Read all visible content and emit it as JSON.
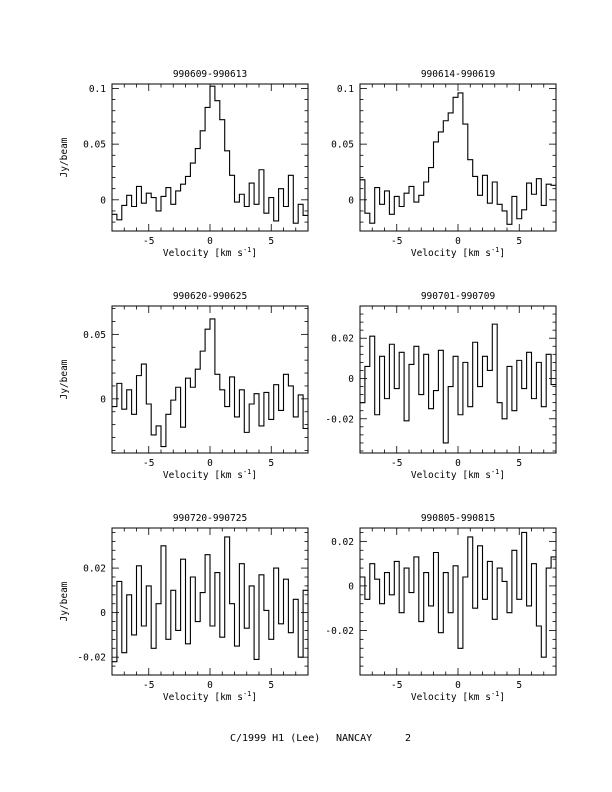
{
  "footer": {
    "object": "C/1999 H1 (Lee)",
    "site": "NANCAY",
    "page": "2"
  },
  "chart_data": [
    {
      "type": "line",
      "title": "990609-990613",
      "xlabel": "Velocity [km s",
      "xlabel_sup": "-1",
      "xlabel_close": "]",
      "ylabel": "Jy/beam",
      "xlim": [
        -8,
        8
      ],
      "ylim": [
        -0.028,
        0.104
      ],
      "xticks": [
        -5,
        0,
        5
      ],
      "yticks": [
        0,
        0.05,
        0.1
      ],
      "ytick_labels": [
        "0",
        "0.05",
        "0.1"
      ],
      "x": [
        -8.0,
        -7.6,
        -7.2,
        -6.8,
        -6.4,
        -6.0,
        -5.6,
        -5.2,
        -4.8,
        -4.4,
        -4.0,
        -3.6,
        -3.2,
        -2.8,
        -2.4,
        -2.0,
        -1.6,
        -1.2,
        -0.8,
        -0.4,
        0.0,
        0.4,
        0.8,
        1.2,
        1.6,
        2.0,
        2.4,
        2.8,
        3.2,
        3.6,
        4.0,
        4.4,
        4.8,
        5.2,
        5.6,
        6.0,
        6.4,
        6.8,
        7.2,
        7.6
      ],
      "y": [
        -0.013,
        -0.018,
        -0.005,
        0.004,
        -0.006,
        0.012,
        -0.003,
        0.006,
        0.002,
        -0.01,
        0.003,
        0.011,
        -0.004,
        0.008,
        0.014,
        0.021,
        0.033,
        0.046,
        0.062,
        0.083,
        0.102,
        0.089,
        0.072,
        0.044,
        0.022,
        -0.002,
        0.005,
        -0.006,
        0.015,
        -0.004,
        0.027,
        -0.012,
        0.002,
        -0.019,
        0.01,
        -0.006,
        0.022,
        -0.021,
        -0.004,
        -0.014
      ]
    },
    {
      "type": "line",
      "title": "990614-990619",
      "xlabel": "Velocity [km s",
      "xlabel_sup": "-1",
      "xlabel_close": "]",
      "ylabel": "",
      "xlim": [
        -8,
        8
      ],
      "ylim": [
        -0.028,
        0.104
      ],
      "xticks": [
        -5,
        0,
        5
      ],
      "yticks": [
        0,
        0.05,
        0.1
      ],
      "ytick_labels": [
        "0",
        "0.05",
        "0.1"
      ],
      "x": [
        -8.0,
        -7.6,
        -7.2,
        -6.8,
        -6.4,
        -6.0,
        -5.6,
        -5.2,
        -4.8,
        -4.4,
        -4.0,
        -3.6,
        -3.2,
        -2.8,
        -2.4,
        -2.0,
        -1.6,
        -1.2,
        -0.8,
        -0.4,
        0.0,
        0.4,
        0.8,
        1.2,
        1.6,
        2.0,
        2.4,
        2.8,
        3.2,
        3.6,
        4.0,
        4.4,
        4.8,
        5.2,
        5.6,
        6.0,
        6.4,
        6.8,
        7.2,
        7.6
      ],
      "y": [
        0.018,
        -0.012,
        -0.021,
        0.011,
        -0.004,
        0.008,
        -0.013,
        0.003,
        -0.006,
        0.006,
        0.012,
        -0.002,
        0.004,
        0.016,
        0.029,
        0.052,
        0.061,
        0.071,
        0.078,
        0.092,
        0.096,
        0.068,
        0.036,
        0.021,
        0.004,
        0.022,
        -0.003,
        0.016,
        -0.004,
        -0.01,
        -0.022,
        0.003,
        -0.017,
        -0.009,
        0.015,
        0.005,
        0.019,
        -0.005,
        0.014,
        0.013
      ]
    },
    {
      "type": "line",
      "title": "990620-990625",
      "xlabel": "Velocity [km s",
      "xlabel_sup": "-1",
      "xlabel_close": "]",
      "ylabel": "Jy/beam",
      "xlim": [
        -8,
        8
      ],
      "ylim": [
        -0.042,
        0.072
      ],
      "xticks": [
        -5,
        0,
        5
      ],
      "yticks": [
        0,
        0.05
      ],
      "ytick_labels": [
        "0",
        "0.05"
      ],
      "x": [
        -8.0,
        -7.6,
        -7.2,
        -6.8,
        -6.4,
        -6.0,
        -5.6,
        -5.2,
        -4.8,
        -4.4,
        -4.0,
        -3.6,
        -3.2,
        -2.8,
        -2.4,
        -2.0,
        -1.6,
        -1.2,
        -0.8,
        -0.4,
        0.0,
        0.4,
        0.8,
        1.2,
        1.6,
        2.0,
        2.4,
        2.8,
        3.2,
        3.6,
        4.0,
        4.4,
        4.8,
        5.2,
        5.6,
        6.0,
        6.4,
        6.8,
        7.2,
        7.6
      ],
      "y": [
        -0.006,
        0.012,
        -0.008,
        0.007,
        -0.012,
        0.018,
        0.027,
        -0.004,
        -0.028,
        -0.021,
        -0.037,
        -0.012,
        -0.001,
        0.009,
        -0.022,
        0.016,
        0.009,
        0.023,
        0.037,
        0.054,
        0.062,
        0.019,
        0.007,
        -0.006,
        0.017,
        -0.014,
        0.007,
        -0.026,
        -0.004,
        0.004,
        -0.021,
        0.005,
        -0.016,
        0.011,
        -0.009,
        0.019,
        0.01,
        -0.014,
        0.003,
        -0.023
      ]
    },
    {
      "type": "line",
      "title": "990701-990709",
      "xlabel": "Velocity [km s",
      "xlabel_sup": "-1",
      "xlabel_close": "]",
      "ylabel": "",
      "xlim": [
        -8,
        8
      ],
      "ylim": [
        -0.037,
        0.036
      ],
      "xticks": [
        -5,
        0,
        5
      ],
      "yticks": [
        -0.02,
        0,
        0.02
      ],
      "ytick_labels": [
        "-0.02",
        "0",
        "0.02"
      ],
      "x": [
        -8.0,
        -7.6,
        -7.2,
        -6.8,
        -6.4,
        -6.0,
        -5.6,
        -5.2,
        -4.8,
        -4.4,
        -4.0,
        -3.6,
        -3.2,
        -2.8,
        -2.4,
        -2.0,
        -1.6,
        -1.2,
        -0.8,
        -0.4,
        0.0,
        0.4,
        0.8,
        1.2,
        1.6,
        2.0,
        2.4,
        2.8,
        3.2,
        3.6,
        4.0,
        4.4,
        4.8,
        5.2,
        5.6,
        6.0,
        6.4,
        6.8,
        7.2,
        7.6
      ],
      "y": [
        -0.012,
        0.006,
        0.021,
        -0.018,
        0.011,
        -0.01,
        0.017,
        -0.005,
        0.013,
        -0.021,
        0.007,
        0.016,
        -0.008,
        0.012,
        -0.015,
        -0.006,
        0.014,
        -0.032,
        -0.004,
        0.011,
        -0.018,
        0.008,
        -0.014,
        0.018,
        -0.004,
        0.011,
        0.004,
        0.027,
        -0.012,
        -0.02,
        0.006,
        -0.016,
        0.009,
        -0.005,
        0.013,
        -0.01,
        0.008,
        -0.014,
        0.012,
        -0.003
      ]
    },
    {
      "type": "line",
      "title": "990720-990725",
      "xlabel": "Velocity [km s",
      "xlabel_sup": "-1",
      "xlabel_close": "]",
      "ylabel": "Jy/beam",
      "xlim": [
        -8,
        8
      ],
      "ylim": [
        -0.028,
        0.038
      ],
      "xticks": [
        -5,
        0,
        5
      ],
      "yticks": [
        -0.02,
        0,
        0.02
      ],
      "ytick_labels": [
        "-0.02",
        "0",
        "0.02"
      ],
      "x": [
        -8.0,
        -7.6,
        -7.2,
        -6.8,
        -6.4,
        -6.0,
        -5.6,
        -5.2,
        -4.8,
        -4.4,
        -4.0,
        -3.6,
        -3.2,
        -2.8,
        -2.4,
        -2.0,
        -1.6,
        -1.2,
        -0.8,
        -0.4,
        0.0,
        0.4,
        0.8,
        1.2,
        1.6,
        2.0,
        2.4,
        2.8,
        3.2,
        3.6,
        4.0,
        4.4,
        4.8,
        5.2,
        5.6,
        6.0,
        6.4,
        6.8,
        7.2,
        7.6
      ],
      "y": [
        -0.022,
        0.014,
        -0.018,
        0.008,
        -0.01,
        0.021,
        -0.006,
        0.012,
        -0.016,
        0.004,
        0.03,
        -0.012,
        0.01,
        -0.008,
        0.024,
        -0.014,
        0.016,
        -0.004,
        0.009,
        0.026,
        -0.006,
        0.018,
        -0.011,
        0.034,
        0.004,
        -0.015,
        0.022,
        -0.007,
        0.012,
        -0.021,
        0.017,
        0.001,
        -0.012,
        0.02,
        -0.005,
        0.015,
        -0.009,
        0.006,
        -0.02,
        0.01
      ]
    },
    {
      "type": "line",
      "title": "990805-990815",
      "xlabel": "Velocity [km s",
      "xlabel_sup": "-1",
      "xlabel_close": "]",
      "ylabel": "",
      "xlim": [
        -8,
        8
      ],
      "ylim": [
        -0.04,
        0.026
      ],
      "xticks": [
        -5,
        0,
        5
      ],
      "yticks": [
        -0.02,
        0,
        0.02
      ],
      "ytick_labels": [
        "-0.02",
        "0",
        "0.02"
      ],
      "x": [
        -8.0,
        -7.6,
        -7.2,
        -6.8,
        -6.4,
        -6.0,
        -5.6,
        -5.2,
        -4.8,
        -4.4,
        -4.0,
        -3.6,
        -3.2,
        -2.8,
        -2.4,
        -2.0,
        -1.6,
        -1.2,
        -0.8,
        -0.4,
        0.0,
        0.4,
        0.8,
        1.2,
        1.6,
        2.0,
        2.4,
        2.8,
        3.2,
        3.6,
        4.0,
        4.4,
        4.8,
        5.2,
        5.6,
        6.0,
        6.4,
        6.8,
        7.2,
        7.6
      ],
      "y": [
        0.004,
        -0.006,
        0.01,
        0.003,
        -0.008,
        0.006,
        -0.004,
        0.011,
        -0.012,
        0.008,
        -0.003,
        0.013,
        -0.016,
        0.006,
        -0.009,
        0.015,
        -0.021,
        0.006,
        -0.012,
        0.009,
        -0.028,
        0.004,
        0.022,
        -0.01,
        0.018,
        -0.006,
        0.011,
        -0.015,
        0.008,
        0.002,
        -0.012,
        0.016,
        -0.006,
        0.024,
        -0.009,
        0.01,
        -0.018,
        -0.032,
        0.008,
        0.013
      ]
    }
  ]
}
